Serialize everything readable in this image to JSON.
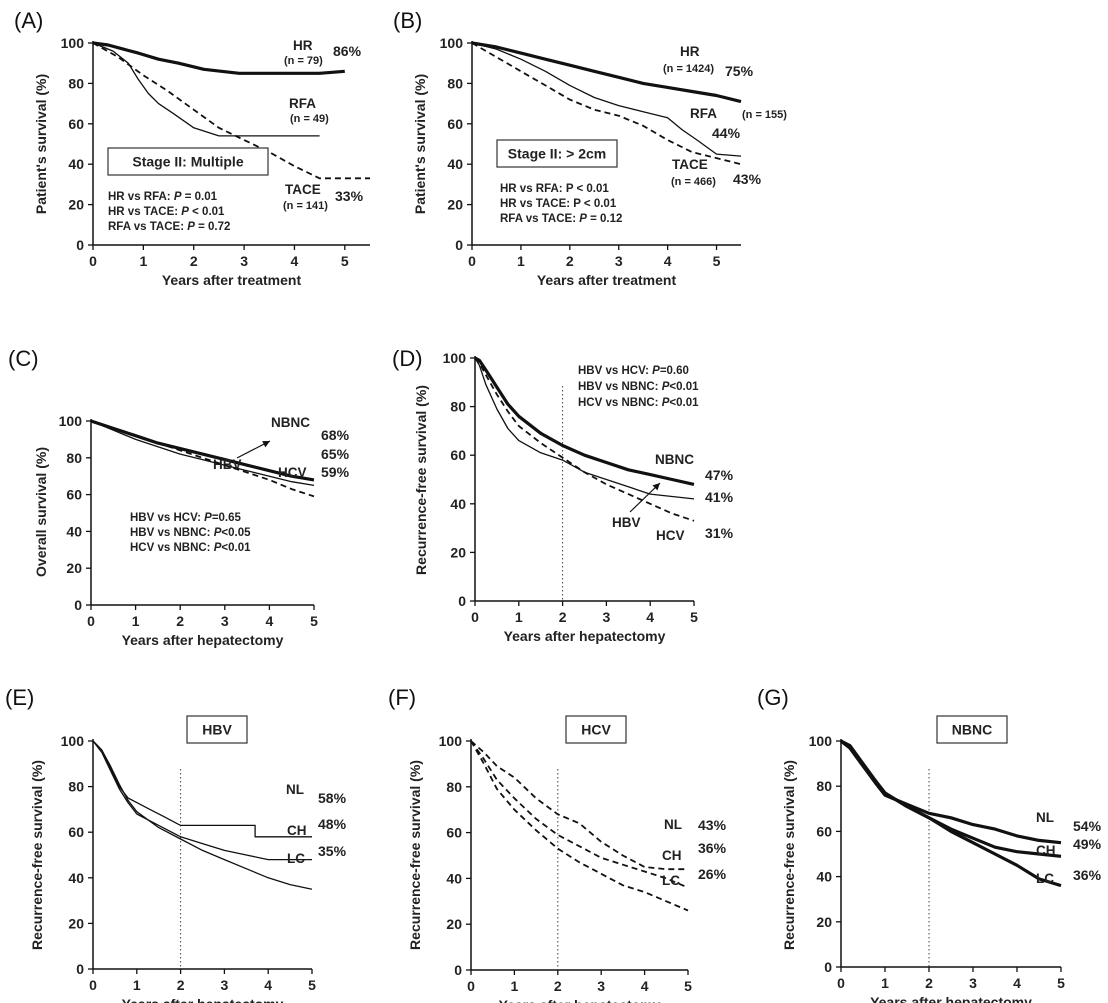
{
  "chart_data": [
    {
      "panel": "(A)",
      "type": "line",
      "xlabel": "Years after treatment",
      "ylabel": "Patient's survival (%)",
      "xlim": [
        0,
        5.5
      ],
      "ylim": [
        0,
        100
      ],
      "xticks": [
        "0",
        "1",
        "2",
        "3",
        "4",
        "5"
      ],
      "yticks": [
        "0",
        "20",
        "40",
        "60",
        "80",
        "100"
      ],
      "box": "Stage II: Multiple",
      "stats": [
        {
          "text": "HR vs RFA: ",
          "p": "P",
          "rest": " = 0.01"
        },
        {
          "text": "HR vs TACE: ",
          "p": "P",
          "rest": " < 0.01"
        },
        {
          "text": "RFA vs TACE: ",
          "p": "P",
          "rest": " = 0.72"
        }
      ],
      "series": [
        {
          "name": "HR",
          "n": "(n = 79)",
          "end_label": "86%",
          "style": "thick",
          "x": [
            0,
            0.3,
            0.6,
            0.9,
            1.3,
            1.7,
            2.2,
            2.9,
            3.5,
            4.0,
            4.5,
            5.0
          ],
          "y": [
            100,
            99,
            97,
            95,
            92,
            90,
            87,
            85,
            85,
            85,
            85,
            86
          ]
        },
        {
          "name": "RFA",
          "n": "(n = 49)",
          "end_label": "",
          "style": "thin",
          "x": [
            0,
            0.4,
            0.7,
            0.9,
            1.1,
            1.3,
            1.6,
            2.0,
            2.5,
            3.0,
            3.5,
            4.0,
            4.5
          ],
          "y": [
            100,
            96,
            90,
            82,
            75,
            70,
            65,
            58,
            54,
            54,
            54,
            54,
            54
          ]
        },
        {
          "name": "TACE",
          "n": "(n = 141)",
          "end_label": "33%",
          "style": "dashed",
          "x": [
            0,
            0.5,
            1.0,
            1.5,
            2.0,
            2.5,
            3.0,
            3.5,
            4.0,
            4.5,
            5.0,
            5.5
          ],
          "y": [
            100,
            93,
            84,
            76,
            67,
            58,
            52,
            46,
            39,
            33,
            33,
            33
          ]
        }
      ]
    },
    {
      "panel": "(B)",
      "type": "line",
      "xlabel": "Years after treatment",
      "ylabel": "Patient's survival (%)",
      "xlim": [
        0,
        5.5
      ],
      "ylim": [
        0,
        100
      ],
      "xticks": [
        "0",
        "1",
        "2",
        "3",
        "4",
        "5"
      ],
      "yticks": [
        "0",
        "20",
        "40",
        "60",
        "80",
        "100"
      ],
      "box": "Stage II: > 2cm",
      "stats": [
        {
          "text": "HR vs RFA: P < 0.01",
          "p": "",
          "rest": ""
        },
        {
          "text": "HR vs TACE: P < 0.01",
          "p": "",
          "rest": ""
        },
        {
          "text": "RFA vs TACE: ",
          "p": "P",
          "rest": " = 0.12"
        }
      ],
      "series": [
        {
          "name": "HR",
          "n": "(n = 1424)",
          "end_label": "75%",
          "style": "thick",
          "x": [
            0,
            0.5,
            1.0,
            1.5,
            2.0,
            2.5,
            3.0,
            3.5,
            4.0,
            4.5,
            5.0,
            5.5
          ],
          "y": [
            100,
            98,
            95,
            92,
            89,
            86,
            83,
            80,
            78,
            76,
            74,
            71
          ]
        },
        {
          "name": "RFA",
          "n": "(n = 155)",
          "end_label": "44%",
          "style": "thin",
          "x": [
            0,
            0.5,
            1.0,
            1.5,
            2.0,
            2.5,
            3.0,
            3.5,
            4.0,
            4.3,
            4.6,
            5.0,
            5.5
          ],
          "y": [
            100,
            97,
            92,
            86,
            79,
            73,
            69,
            66,
            63,
            57,
            52,
            45,
            44
          ]
        },
        {
          "name": "TACE",
          "n": "(n = 466)",
          "end_label": "43%",
          "style": "dashed",
          "x": [
            0,
            0.5,
            1.0,
            1.5,
            2.0,
            2.5,
            3.0,
            3.5,
            4.0,
            4.5,
            5.0,
            5.5
          ],
          "y": [
            100,
            93,
            86,
            79,
            72,
            67,
            64,
            59,
            52,
            46,
            43,
            40
          ]
        }
      ]
    },
    {
      "panel": "(C)",
      "type": "line",
      "xlabel": "Years after hepatectomy",
      "ylabel": "Overall survival (%)",
      "xlim": [
        0,
        5
      ],
      "ylim": [
        0,
        100
      ],
      "xticks": [
        "0",
        "1",
        "2",
        "3",
        "4",
        "5"
      ],
      "yticks": [
        "0",
        "20",
        "40",
        "60",
        "80",
        "100"
      ],
      "box": "",
      "stats": [
        {
          "text": "HBV vs HCV: ",
          "p": "P",
          "rest": "=0.65"
        },
        {
          "text": "HBV vs NBNC: ",
          "p": "P",
          "rest": "<0.05"
        },
        {
          "text": "HCV vs NBNC: ",
          "p": "P",
          "rest": "<0.01"
        }
      ],
      "series": [
        {
          "name": "NBNC",
          "end_label": "68%",
          "style": "thick",
          "x": [
            0,
            0.5,
            1,
            1.5,
            2,
            2.5,
            3,
            3.5,
            4,
            4.5,
            5
          ],
          "y": [
            100,
            96,
            92,
            88,
            85,
            82,
            79,
            76,
            73,
            70,
            68
          ]
        },
        {
          "name": "HBV",
          "end_label": "65%",
          "style": "thin",
          "x": [
            0,
            0.5,
            1,
            1.5,
            2,
            2.5,
            3,
            3.5,
            4,
            4.5,
            5
          ],
          "y": [
            100,
            95,
            90,
            86,
            82,
            79,
            76,
            73,
            70,
            67,
            65
          ]
        },
        {
          "name": "HCV",
          "end_label": "59%",
          "style": "dashed",
          "x": [
            0,
            0.5,
            1,
            1.5,
            2,
            2.5,
            3,
            3.5,
            4,
            4.5,
            5
          ],
          "y": [
            100,
            96,
            92,
            88,
            84,
            80,
            76,
            72,
            68,
            63,
            59
          ]
        }
      ]
    },
    {
      "panel": "(D)",
      "type": "line",
      "xlabel": "Years after hepatectomy",
      "ylabel": "Recurrence-free survival (%)",
      "xlim": [
        0,
        5
      ],
      "ylim": [
        0,
        100
      ],
      "xticks": [
        "0",
        "1",
        "2",
        "3",
        "4",
        "5"
      ],
      "yticks": [
        "0",
        "20",
        "40",
        "60",
        "80",
        "100"
      ],
      "vline": 2,
      "box": "",
      "stats": [
        {
          "text": "HBV vs HCV:    ",
          "p": "P",
          "rest": "=0.60"
        },
        {
          "text": "HBV vs NBNC: ",
          "p": "P",
          "rest": "<0.01"
        },
        {
          "text": "HCV vs NBNC: ",
          "p": "P",
          "rest": "<0.01"
        }
      ],
      "series": [
        {
          "name": "NBNC",
          "end_label": "47%",
          "style": "thick",
          "x": [
            0,
            0.1,
            0.25,
            0.5,
            0.75,
            1,
            1.5,
            2,
            2.5,
            3,
            3.5,
            4,
            4.5,
            5
          ],
          "y": [
            100,
            99,
            95,
            88,
            81,
            76,
            69,
            64,
            60,
            57,
            54,
            52,
            50,
            48
          ]
        },
        {
          "name": "HBV",
          "end_label": "41%",
          "style": "thin",
          "x": [
            0,
            0.1,
            0.25,
            0.5,
            0.75,
            1,
            1.5,
            2,
            2.5,
            3,
            3.5,
            4,
            4.5,
            5
          ],
          "y": [
            100,
            97,
            89,
            79,
            71,
            66,
            61,
            58,
            53,
            50,
            47,
            44,
            43,
            42
          ]
        },
        {
          "name": "HCV",
          "end_label": "31%",
          "style": "dashed",
          "x": [
            0,
            0.1,
            0.25,
            0.5,
            0.75,
            1,
            1.5,
            2,
            2.5,
            3,
            3.5,
            4,
            4.5,
            5
          ],
          "y": [
            100,
            98,
            93,
            85,
            78,
            72,
            65,
            59,
            53,
            48,
            44,
            40,
            36,
            33
          ]
        }
      ]
    },
    {
      "panel": "(E)",
      "type": "line",
      "xlabel": "Years after hepatectomy",
      "ylabel": "Recurrence-free survival (%)",
      "xlim": [
        0,
        5
      ],
      "ylim": [
        0,
        100
      ],
      "xticks": [
        "0",
        "1",
        "2",
        "3",
        "4",
        "5"
      ],
      "yticks": [
        "0",
        "20",
        "40",
        "60",
        "80",
        "100"
      ],
      "vline": 2,
      "box": "HBV",
      "stats": [],
      "series": [
        {
          "name": "NL",
          "end_label": "58%",
          "style": "thin",
          "x": [
            0,
            0.2,
            0.4,
            0.6,
            0.8,
            1,
            1.3,
            1.6,
            2,
            2.3,
            3,
            3.7,
            3.7,
            5
          ],
          "y": [
            100,
            96,
            88,
            80,
            75,
            73,
            70,
            67,
            63,
            63,
            63,
            63,
            58,
            58
          ]
        },
        {
          "name": "CH",
          "end_label": "48%",
          "style": "thin",
          "x": [
            0,
            0.2,
            0.4,
            0.6,
            0.8,
            1,
            1.5,
            2,
            2.5,
            3,
            3.5,
            4,
            4.5,
            5
          ],
          "y": [
            100,
            95,
            87,
            79,
            73,
            68,
            63,
            58,
            55,
            52,
            50,
            48,
            48,
            48
          ]
        },
        {
          "name": "LC",
          "end_label": "35%",
          "style": "thin",
          "x": [
            0,
            0.2,
            0.4,
            0.6,
            0.8,
            1,
            1.5,
            2,
            2.5,
            3,
            3.5,
            4,
            4.5,
            5
          ],
          "y": [
            100,
            96,
            89,
            81,
            74,
            69,
            62,
            57,
            52,
            48,
            44,
            40,
            37,
            35
          ]
        }
      ]
    },
    {
      "panel": "(F)",
      "type": "line",
      "xlabel": "Years after hepatectomy",
      "ylabel": "Recurrence-free survival (%)",
      "xlim": [
        0,
        5
      ],
      "ylim": [
        0,
        100
      ],
      "xticks": [
        "0",
        "1",
        "2",
        "3",
        "4",
        "5"
      ],
      "yticks": [
        "0",
        "20",
        "40",
        "60",
        "80",
        "100"
      ],
      "vline": 2,
      "box": "HCV",
      "stats": [],
      "series": [
        {
          "name": "NL",
          "end_label": "43%",
          "style": "dashed",
          "x": [
            0,
            0.3,
            0.6,
            1,
            1.5,
            2,
            2.5,
            3,
            3.5,
            4,
            4.5,
            5
          ],
          "y": [
            100,
            95,
            89,
            84,
            75,
            68,
            64,
            56,
            50,
            45,
            44,
            44
          ]
        },
        {
          "name": "CH",
          "end_label": "36%",
          "style": "dashed",
          "x": [
            0,
            0.3,
            0.6,
            1,
            1.5,
            2,
            2.5,
            3,
            3.5,
            4,
            4.5,
            5
          ],
          "y": [
            100,
            92,
            83,
            75,
            66,
            59,
            54,
            49,
            46,
            43,
            40,
            36
          ]
        },
        {
          "name": "LC",
          "end_label": "26%",
          "style": "dashed",
          "x": [
            0,
            0.3,
            0.6,
            1,
            1.5,
            2,
            2.5,
            3,
            3.5,
            4,
            4.5,
            5
          ],
          "y": [
            100,
            90,
            79,
            70,
            61,
            53,
            47,
            42,
            37,
            34,
            30,
            26
          ]
        }
      ]
    },
    {
      "panel": "(G)",
      "type": "line",
      "xlabel": "Years after hepatectomy",
      "ylabel": "Recurrence-free survival (%)",
      "xlim": [
        0,
        5
      ],
      "ylim": [
        0,
        100
      ],
      "xticks": [
        "0",
        "1",
        "2",
        "3",
        "4",
        "5"
      ],
      "yticks": [
        "0",
        "20",
        "40",
        "60",
        "80",
        "100"
      ],
      "vline": 2,
      "box": "NBNC",
      "stats": [],
      "series": [
        {
          "name": "NL",
          "end_label": "54%",
          "style": "thick",
          "x": [
            0,
            0.2,
            0.5,
            0.8,
            1,
            1.5,
            2,
            2.5,
            3,
            3.5,
            4,
            4.5,
            5
          ],
          "y": [
            100,
            97,
            89,
            81,
            76,
            72,
            68,
            66,
            63,
            61,
            58,
            56,
            55
          ]
        },
        {
          "name": "CH",
          "end_label": "49%",
          "style": "thick",
          "x": [
            0,
            0.2,
            0.5,
            0.8,
            1,
            1.5,
            2,
            2.5,
            3,
            3.5,
            4,
            4.5,
            5
          ],
          "y": [
            100,
            98,
            90,
            82,
            77,
            71,
            66,
            61,
            57,
            53,
            51,
            50,
            49
          ]
        },
        {
          "name": "LC",
          "end_label": "36%",
          "style": "thick",
          "x": [
            0,
            0.2,
            0.5,
            0.8,
            1,
            1.5,
            2,
            2.5,
            3,
            3.5,
            4,
            4.5,
            5
          ],
          "y": [
            100,
            97,
            89,
            82,
            77,
            71,
            66,
            60,
            55,
            50,
            45,
            39,
            36
          ]
        }
      ]
    }
  ]
}
